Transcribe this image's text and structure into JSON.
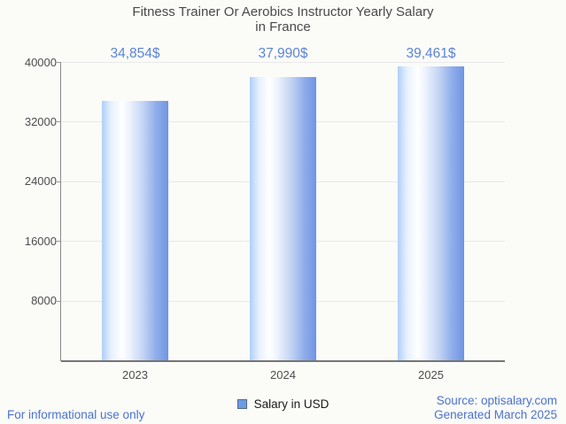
{
  "header": {
    "title_line1": "Fitness Trainer Or Aerobics Instructor Yearly Salary",
    "title_line2": "in France"
  },
  "chart_data": {
    "type": "bar",
    "title": "Fitness Trainer Or Aerobics Instructor Yearly Salary in France",
    "categories": [
      "2023",
      "2024",
      "2025"
    ],
    "series": [
      {
        "name": "Salary in USD",
        "values": [
          34854,
          37990,
          39461
        ]
      }
    ],
    "value_labels": [
      "34,854$",
      "37,990$",
      "39,461$"
    ],
    "xlabel": "",
    "ylabel": "",
    "ylim": [
      0,
      40000
    ],
    "yticks": [
      8000,
      16000,
      24000,
      32000,
      40000
    ],
    "grid": true,
    "legend_position": "bottom"
  },
  "legend": {
    "label": "Salary in USD"
  },
  "footer": {
    "note": "For informational use only",
    "source": "Source: optisalary.com",
    "generated": "Generated March 2025"
  },
  "colors": {
    "annotation": "#5b84d6",
    "footer_blue": "#4a72ce",
    "title_text": "#4a4a4a",
    "axis_text": "#4d4d4d",
    "gridline": "#e9e9e9",
    "y_axis_line": "#8b8b8b",
    "x_axis_line": "#757575",
    "legend_swatch_fill": "#6c9de4",
    "legend_swatch_border": "#55687f",
    "bar_gradient": [
      "#aecff9",
      "#e7f1fe",
      "#ffffff",
      "#edf2fc",
      "#c3d4f4",
      "#8fadea",
      "#6f95e3"
    ]
  }
}
